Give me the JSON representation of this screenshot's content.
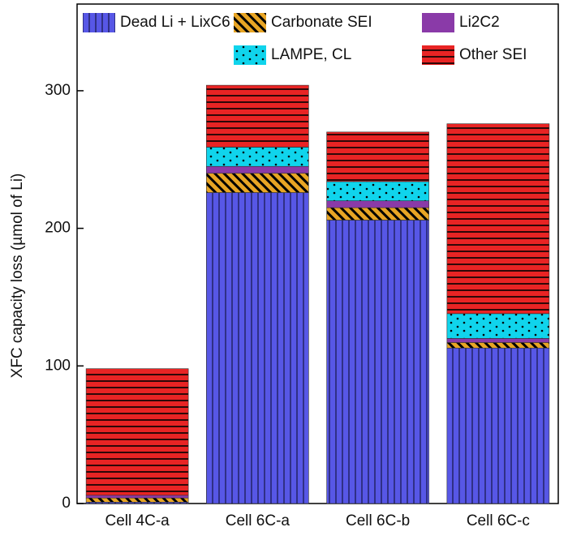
{
  "chart_data": {
    "type": "stacked_bar",
    "ylabel": "XFC capacity loss (µmol of Li)",
    "categories": [
      "Cell 4C-a",
      "Cell 6C-a",
      "Cell 6C-b",
      "Cell 6C-c"
    ],
    "series": [
      {
        "name": "Dead Li + LixC6",
        "color": "#5757e6",
        "values": [
          1,
          226,
          206,
          113
        ]
      },
      {
        "name": "Carbonate SEI",
        "color": "#e8a524",
        "values": [
          3,
          14,
          9,
          4
        ]
      },
      {
        "name": "Li2C2",
        "color": "#8a3aa8",
        "values": [
          2,
          5,
          5,
          3
        ]
      },
      {
        "name": "LAMPE, CL",
        "color": "#10d4ec",
        "values": [
          0,
          14,
          14,
          18
        ]
      },
      {
        "name": "Other SEI",
        "color": "#e82424",
        "values": [
          92,
          45,
          36,
          138
        ]
      }
    ],
    "ylim": [
      0,
      363
    ],
    "yticks": [
      0,
      100,
      200,
      300
    ]
  }
}
